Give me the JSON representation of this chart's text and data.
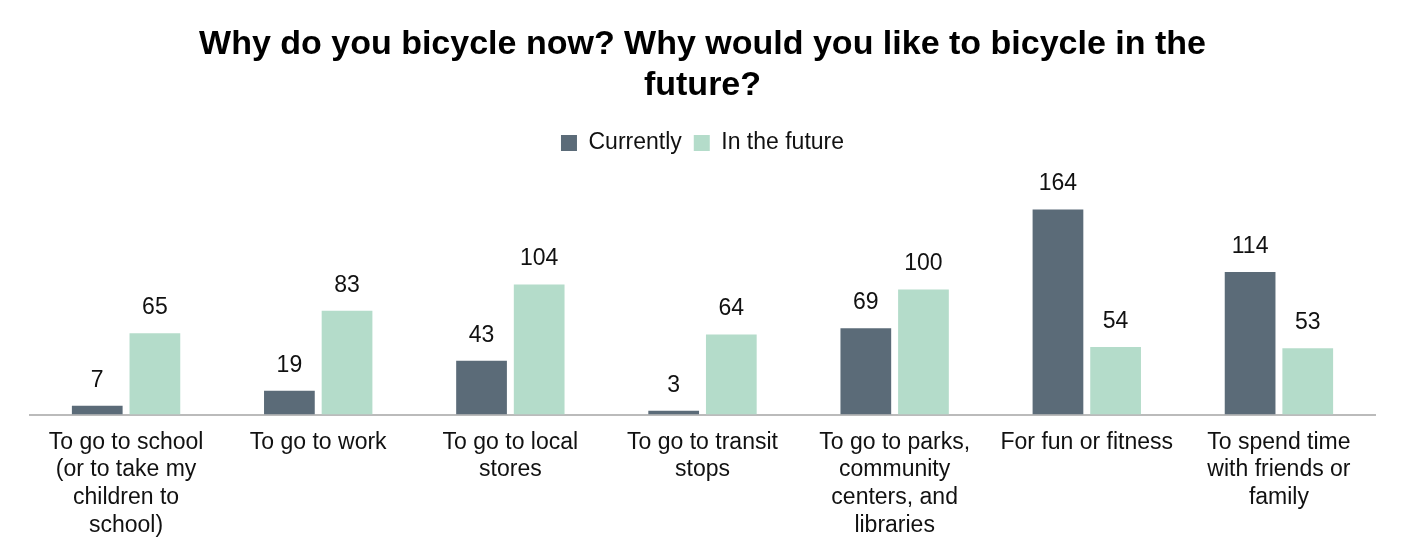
{
  "chart_data": {
    "type": "bar",
    "title": "Why do you bicycle now? Why would you like to bicycle in the future?",
    "categories": [
      "To go to school (or to take my children to school)",
      "To go to work",
      "To go to local stores",
      "To go to transit stops",
      "To go to parks, community centers, and libraries",
      "For fun or fitness",
      "To spend time with friends or family"
    ],
    "series": [
      {
        "name": "Currently",
        "color": "#5b6b78",
        "values": [
          7,
          19,
          43,
          3,
          69,
          164,
          114
        ]
      },
      {
        "name": "In the future",
        "color": "#b4dcca",
        "values": [
          65,
          83,
          104,
          64,
          100,
          54,
          53
        ]
      }
    ],
    "data_labels": true,
    "legend": "top",
    "grid": false
  }
}
